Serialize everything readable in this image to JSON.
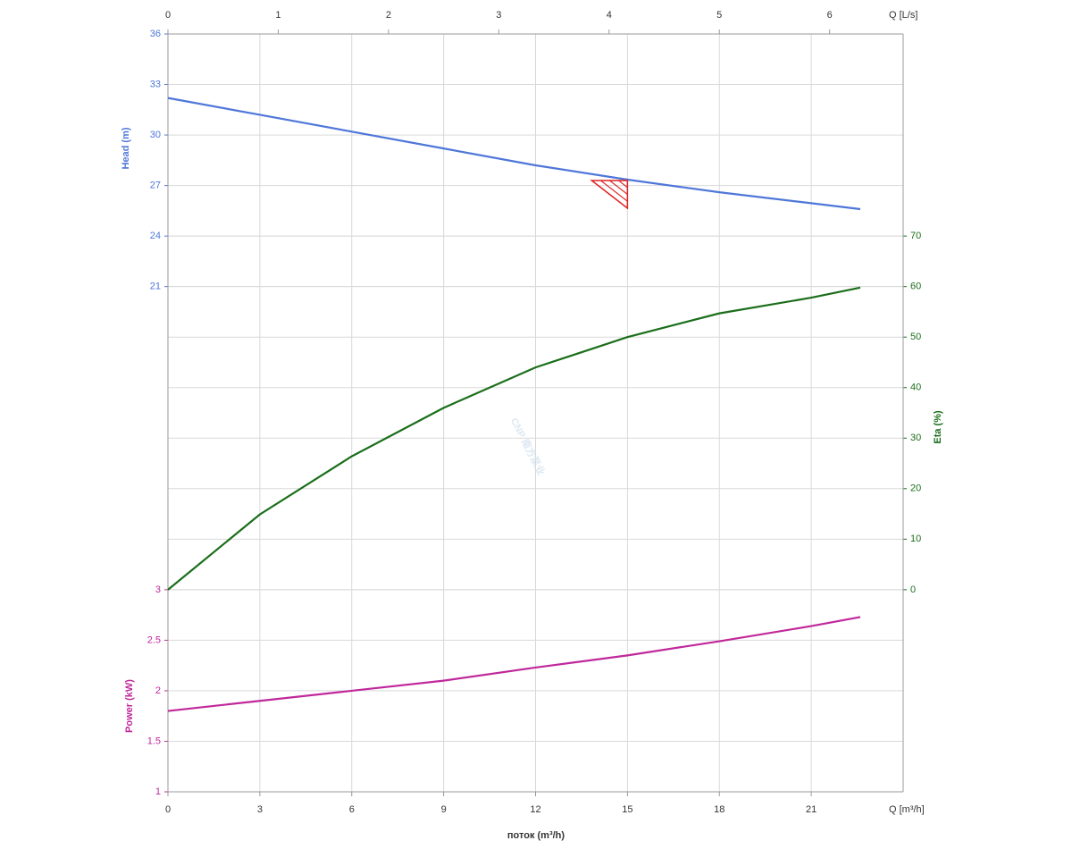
{
  "chart_data": {
    "type": "line",
    "xlabel": "поток (m³/h)",
    "xunit": "Q [m³/h]",
    "x2unit": "Q [L/s]",
    "watermark": "CNP 南方泵业",
    "xlim": [
      0,
      24
    ],
    "xticks": [
      0,
      3,
      6,
      9,
      12,
      15,
      18,
      21
    ],
    "x2lim": [
      0,
      6.6667
    ],
    "x2ticks": [
      0,
      1,
      2,
      3,
      4,
      5,
      6
    ],
    "ylabel": "Head (m)",
    "ylim": [
      -9,
      36
    ],
    "yticks": [
      21,
      24,
      27,
      30,
      33,
      36
    ],
    "y2label": "Eta (%)",
    "y2lim": [
      -40,
      110
    ],
    "y2ticks": [
      0,
      10,
      20,
      30,
      40,
      50,
      60,
      70
    ],
    "y3label": "Power (kW)",
    "y3lim": [
      1,
      8.5
    ],
    "y3ticks": [
      1,
      1.5,
      2,
      2.5,
      3
    ],
    "grid": true,
    "x": [
      0,
      3,
      6,
      9,
      12,
      15,
      18,
      21,
      22.6
    ],
    "series": [
      {
        "name": "Head",
        "axis": "y",
        "color": "#4f77d9",
        "values": [
          32.2,
          31.2,
          30.2,
          29.2,
          28.2,
          27.35,
          26.6,
          25.95,
          25.6
        ]
      },
      {
        "name": "Eta",
        "axis": "y2",
        "color": "#1a6e1a",
        "values": [
          0,
          14.9,
          26.4,
          36,
          44,
          50,
          54.7,
          57.8,
          59.8
        ]
      },
      {
        "name": "Power",
        "axis": "y3",
        "color": "#c0289b",
        "values": [
          1.8,
          1.9,
          2.0,
          2.1,
          2.23,
          2.35,
          2.49,
          2.64,
          2.73
        ]
      }
    ],
    "operating_point": {
      "x": 15,
      "y": 27.3,
      "color": "#e02020"
    }
  }
}
